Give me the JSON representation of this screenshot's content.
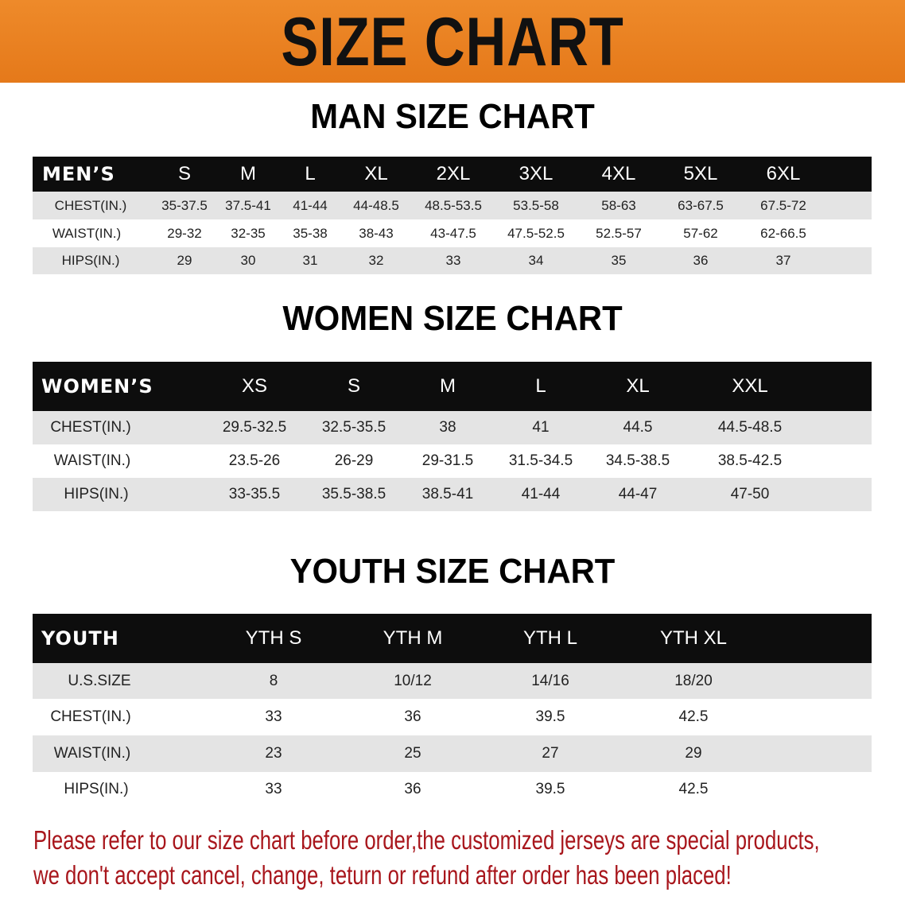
{
  "banner": {
    "title": "SIZE CHART",
    "color": "#e8801f"
  },
  "men": {
    "title": "MAN SIZE CHART",
    "header": [
      "MEN’S",
      "S",
      "M",
      "L",
      "XL",
      "2XL",
      "3XL",
      "4XL",
      "5XL",
      "6XL"
    ],
    "rows": [
      [
        "CHEST(IN.)",
        "35-37.5",
        "37.5-41",
        "41-44",
        "44-48.5",
        "48.5-53.5",
        "53.5-58",
        "58-63",
        "63-67.5",
        "67.5-72"
      ],
      [
        "WAIST(IN.)",
        "29-32",
        "32-35",
        "35-38",
        "38-43",
        "43-47.5",
        "47.5-52.5",
        "52.5-57",
        "57-62",
        "62-66.5"
      ],
      [
        "HIPS(IN.)",
        "29",
        "30",
        "31",
        "32",
        "33",
        "34",
        "35",
        "36",
        "37"
      ]
    ]
  },
  "women": {
    "title": "WOMEN SIZE CHART",
    "header": [
      "WOMEN’S",
      "XS",
      "S",
      "M",
      "L",
      "XL",
      "XXL"
    ],
    "rows": [
      [
        "CHEST(IN.)",
        "29.5-32.5",
        "32.5-35.5",
        "38",
        "41",
        "44.5",
        "44.5-48.5"
      ],
      [
        "WAIST(IN.)",
        "23.5-26",
        "26-29",
        "29-31.5",
        "31.5-34.5",
        "34.5-38.5",
        "38.5-42.5"
      ],
      [
        "HIPS(IN.)",
        "33-35.5",
        "35.5-38.5",
        "38.5-41",
        "41-44",
        "44-47",
        "47-50"
      ]
    ]
  },
  "youth": {
    "title": "YOUTH SIZE CHART",
    "header": [
      "YOUTH",
      "YTH S",
      "YTH M",
      "YTH L",
      "YTH XL"
    ],
    "rows": [
      [
        "U.S.SIZE",
        "8",
        "10/12",
        "14/16",
        "18/20"
      ],
      [
        "CHEST(IN.)",
        "33",
        "36",
        "39.5",
        "42.5"
      ],
      [
        "WAIST(IN.)",
        "23",
        "25",
        "27",
        "29"
      ],
      [
        "HIPS(IN.)",
        "33",
        "36",
        "39.5",
        "42.5"
      ]
    ]
  },
  "note": {
    "line1": "Please refer to our size chart before order,the customized jerseys are special products,",
    "line2": "we don't accept cancel, change, teturn or refund after order has been placed!",
    "color": "#a8161c"
  }
}
